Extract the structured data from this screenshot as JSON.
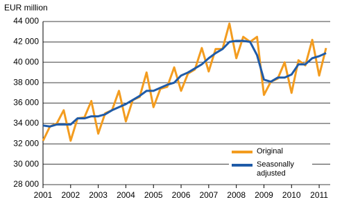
{
  "chart_data": {
    "type": "line",
    "y_label": "EUR million",
    "x": [
      2001,
      2001.25,
      2001.5,
      2001.75,
      2002,
      2002.25,
      2002.5,
      2002.75,
      2003,
      2003.25,
      2003.5,
      2003.75,
      2004,
      2004.25,
      2004.5,
      2004.75,
      2005,
      2005.25,
      2005.5,
      2005.75,
      2006,
      2006.25,
      2006.5,
      2006.75,
      2007,
      2007.25,
      2007.5,
      2007.75,
      2008,
      2008.25,
      2008.5,
      2008.75,
      2009,
      2009.25,
      2009.5,
      2009.75,
      2010,
      2010.25,
      2010.5,
      2010.75,
      2011,
      2011.25
    ],
    "series": [
      {
        "name": "Original",
        "color": "#f39c1f",
        "values": [
          32300,
          33700,
          34000,
          35300,
          32300,
          34500,
          34600,
          36200,
          33000,
          35000,
          35300,
          37200,
          34200,
          36300,
          36600,
          39000,
          35600,
          37400,
          37600,
          39500,
          37200,
          38900,
          39300,
          41400,
          39100,
          41300,
          41300,
          43800,
          40400,
          42500,
          42000,
          42500,
          36800,
          38100,
          38400,
          40000,
          37000,
          40200,
          39700,
          42200,
          38700,
          41400
        ]
      },
      {
        "name": "Seasonally adjusted",
        "color": "#1f5ba8",
        "values": [
          33800,
          33700,
          33900,
          33900,
          33900,
          34500,
          34500,
          34700,
          34700,
          34900,
          35300,
          35600,
          35900,
          36300,
          36700,
          37200,
          37200,
          37500,
          37800,
          38000,
          38700,
          39000,
          39400,
          39800,
          40400,
          40900,
          41300,
          42000,
          42100,
          42100,
          42000,
          40700,
          38300,
          38100,
          38500,
          38500,
          38800,
          39800,
          39800,
          40400,
          40600,
          40900
        ]
      }
    ],
    "xlim": [
      2001,
      2011.4
    ],
    "xticks": [
      2001,
      2002,
      2003,
      2004,
      2005,
      2006,
      2007,
      2008,
      2009,
      2010,
      2011
    ],
    "ylim": [
      28000,
      44000
    ],
    "yticks": [
      {
        "value": 28000,
        "label": "28 000"
      },
      {
        "value": 30000,
        "label": "30 000"
      },
      {
        "value": 32000,
        "label": "32 000"
      },
      {
        "value": 34000,
        "label": "34 000"
      },
      {
        "value": 36000,
        "label": "36 000"
      },
      {
        "value": 38000,
        "label": "38 000"
      },
      {
        "value": 40000,
        "label": "40 000"
      },
      {
        "value": 42000,
        "label": "42 000"
      },
      {
        "value": 44000,
        "label": "44 000"
      }
    ],
    "grid": true
  }
}
